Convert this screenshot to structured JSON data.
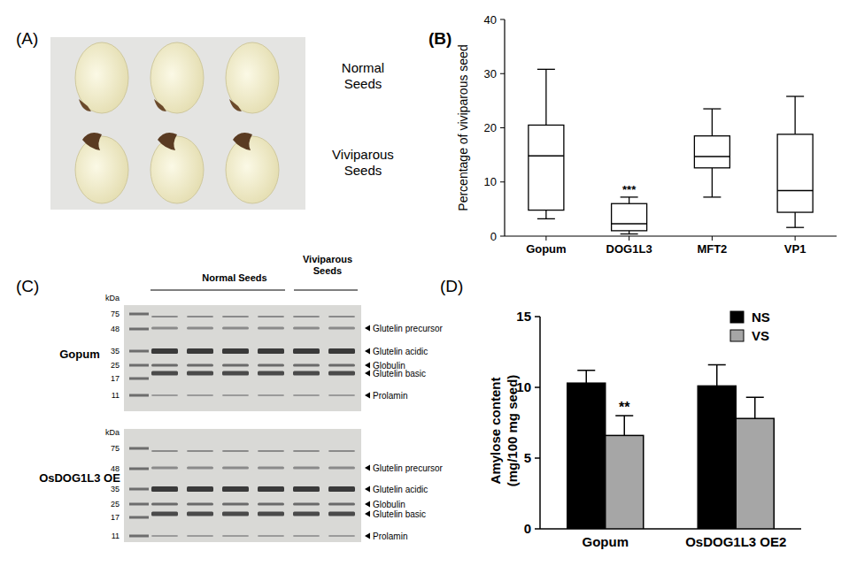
{
  "figure": {
    "panel_labels": [
      "(A)",
      "(B)",
      "(C)",
      "(D)"
    ],
    "panel_a": {
      "labels": [
        "Normal Seeds",
        "Viviparous Seeds"
      ]
    },
    "panel_c": {
      "column_headers": [
        "Normal Seeds",
        "Viviparous Seeds"
      ],
      "unit": "kDa",
      "gels": [
        {
          "label": "Gopum",
          "ladder": [
            75,
            48,
            35,
            25,
            17,
            11
          ],
          "bands": [
            "Glutelin precursor",
            "Glutelin acidic",
            "Globulin",
            "Glutelin basic",
            "Prolamin"
          ]
        },
        {
          "label": "OsDOG1L3 OE",
          "ladder": [
            75,
            48,
            35,
            25,
            17,
            11
          ],
          "bands": [
            "Glutelin precursor",
            "Glutelin acidic",
            "Globulin",
            "Glutelin basic",
            "Prolamin"
          ]
        }
      ]
    }
  },
  "chart_data": [
    {
      "type": "box",
      "ylabel": "Percentage of viviparous seed",
      "categories": [
        "Gopum",
        "DOG1L3",
        "MFT2",
        "VP1"
      ],
      "min": [
        3.2,
        0.4,
        7.2,
        1.6
      ],
      "q1": [
        4.8,
        1.0,
        12.6,
        4.4
      ],
      "median": [
        14.8,
        2.3,
        14.7,
        8.4
      ],
      "q3": [
        20.5,
        6.0,
        18.5,
        18.8
      ],
      "max": [
        30.8,
        7.2,
        23.5,
        25.8
      ],
      "ylim": [
        0,
        40
      ],
      "yticks": [
        0,
        10,
        20,
        30,
        40
      ],
      "grid": false,
      "annotations": [
        {
          "text": "***",
          "category": "DOG1L3"
        }
      ]
    },
    {
      "type": "bar",
      "ylabel": "Amylose content\n(mg/100 mg seed)",
      "categories": [
        "Gopum",
        "OsDOG1L3 OE2"
      ],
      "series": [
        {
          "name": "NS",
          "color": "#000000",
          "values": [
            10.3,
            10.1
          ],
          "errors": [
            0.9,
            1.5
          ]
        },
        {
          "name": "VS",
          "color": "#a6a6a6",
          "values": [
            6.6,
            7.8
          ],
          "errors": [
            1.4,
            1.5
          ]
        }
      ],
      "ylim": [
        0,
        15
      ],
      "yticks": [
        0,
        5,
        10,
        15
      ],
      "grid": false,
      "legend": "top-right",
      "annotations": [
        {
          "text": "**",
          "category": "Gopum",
          "series": "VS"
        }
      ]
    }
  ]
}
